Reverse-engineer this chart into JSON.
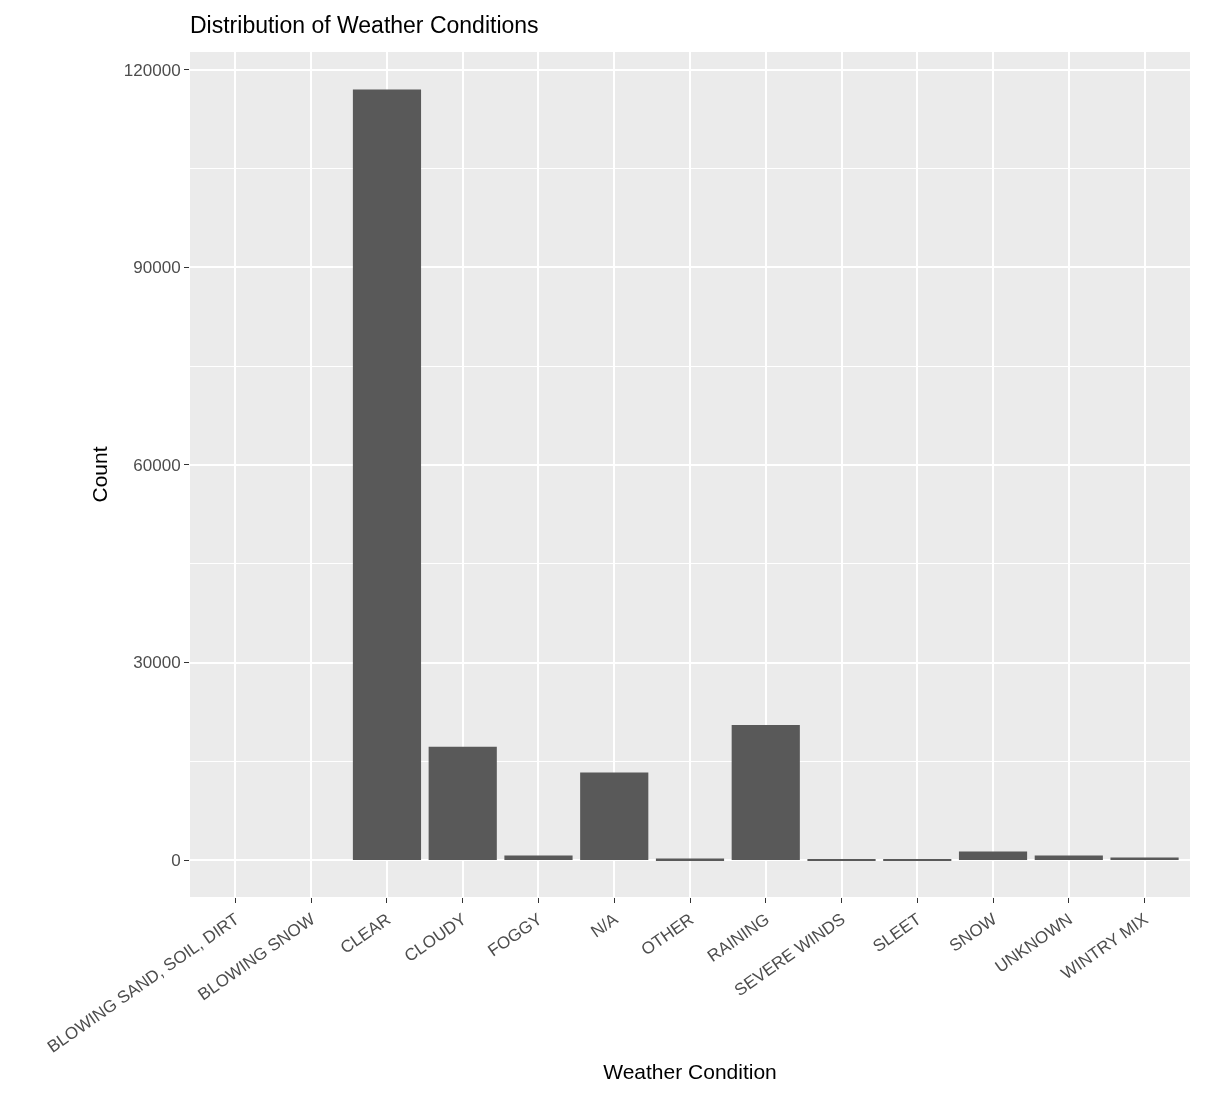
{
  "chart_data": {
    "type": "bar",
    "title": "Distribution of Weather Conditions",
    "xlabel": "Weather Condition",
    "ylabel": "Count",
    "categories": [
      "BLOWING SAND, SOIL, DIRT",
      "BLOWING SNOW",
      "CLEAR",
      "CLOUDY",
      "FOGGY",
      "N/A",
      "OTHER",
      "RAINING",
      "SEVERE WINDS",
      "SLEET",
      "SNOW",
      "UNKNOWN",
      "WINTRY MIX"
    ],
    "values": [
      0,
      0,
      117000,
      17200,
      700,
      13300,
      250,
      20500,
      100,
      100,
      1300,
      700,
      400
    ],
    "color": "#595959",
    "ylim": [
      -5600,
      122700
    ],
    "yticks": [
      0,
      30000,
      60000,
      90000,
      120000
    ],
    "grid": true
  }
}
